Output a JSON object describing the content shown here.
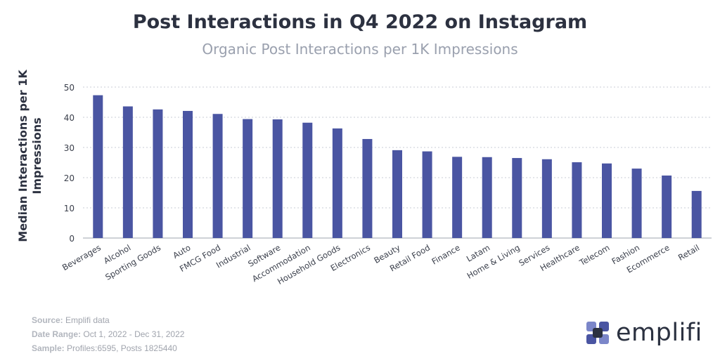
{
  "header": {
    "title": "Post Interactions in Q4 2022 on Instagram",
    "subtitle": "Organic Post Interactions per 1K Impressions"
  },
  "chart_data": {
    "type": "bar",
    "ylabel_line1": "Median Interactions per 1K",
    "ylabel_line2": "Impressions",
    "ylim": [
      0,
      50
    ],
    "yticks": [
      0,
      10,
      20,
      30,
      40,
      50
    ],
    "grid": true,
    "bar_color": "#4a55a2",
    "categories": [
      "Beverages",
      "Alcohol",
      "Sporting Goods",
      "Auto",
      "FMCG Food",
      "Industrial",
      "Software",
      "Accommodation",
      "Household Goods",
      "Electronics",
      "Beauty",
      "Retail Food",
      "Finance",
      "Latam",
      "Home & Living",
      "Services",
      "Healthcare",
      "Telecom",
      "Fashion",
      "Ecommerce",
      "Retail"
    ],
    "values": [
      47.3,
      43.6,
      42.6,
      42.1,
      41.1,
      39.4,
      39.3,
      38.2,
      36.3,
      32.8,
      29.1,
      28.7,
      26.9,
      26.8,
      26.5,
      26.1,
      25.1,
      24.7,
      23.0,
      20.7,
      15.6
    ]
  },
  "footer": {
    "source_label": "Source:",
    "source_value": "Emplifi data",
    "date_label": "Date Range:",
    "date_value": "Oct 1, 2022 - Dec 31, 2022",
    "sample_label": "Sample:",
    "sample_value": "Profiles:6595, Posts 1825440"
  },
  "logo": {
    "text": "emplifi",
    "colors": [
      "#4a55a2",
      "#7b86c9",
      "#2b3140"
    ]
  }
}
